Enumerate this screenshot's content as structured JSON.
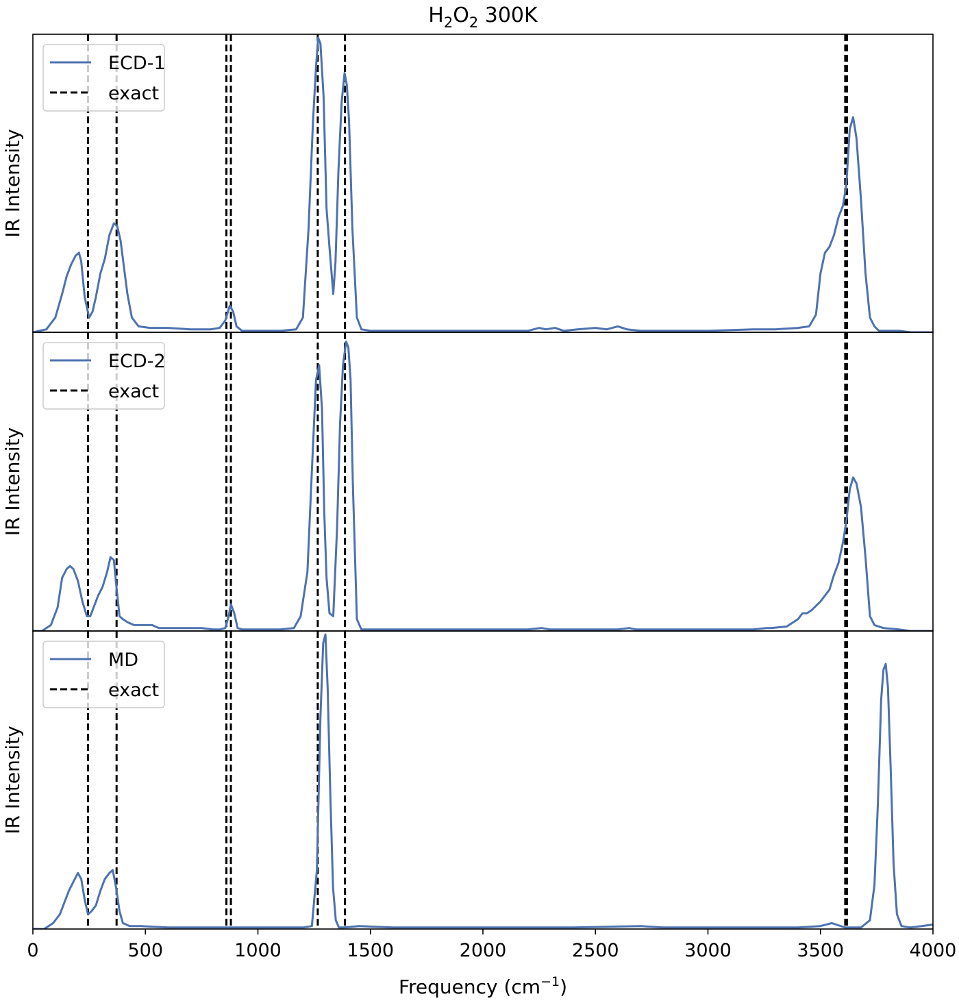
{
  "figure": {
    "title_main": "H",
    "title_sub1": "2",
    "title_mid": "O",
    "title_sub2": "2",
    "title_rest": " 300K",
    "xlabel_main": "Frequency (cm",
    "xlabel_sup": "−1",
    "xlabel_end": ")"
  },
  "chart_data": [
    {
      "type": "line",
      "ylabel": "IR Intensity",
      "xlim": [
        0,
        4000
      ],
      "ylim": [
        0,
        1.0
      ],
      "legend": "top-left",
      "series": [
        {
          "name": "ECD-1",
          "color": "#4c72b0",
          "x": [
            0,
            60,
            100,
            130,
            150,
            170,
            190,
            205,
            215,
            230,
            250,
            265,
            280,
            300,
            320,
            340,
            360,
            375,
            390,
            405,
            420,
            440,
            470,
            520,
            600,
            700,
            790,
            830,
            855,
            875,
            890,
            905,
            930,
            1000,
            1100,
            1170,
            1200,
            1225,
            1245,
            1258,
            1268,
            1278,
            1292,
            1305,
            1320,
            1335,
            1345,
            1358,
            1372,
            1385,
            1395,
            1405,
            1420,
            1440,
            1460,
            1500,
            1700,
            2000,
            2200,
            2250,
            2280,
            2320,
            2360,
            2420,
            2500,
            2550,
            2600,
            2640,
            2700,
            2800,
            3000,
            3200,
            3300,
            3400,
            3450,
            3480,
            3500,
            3520,
            3540,
            3560,
            3580,
            3600,
            3615,
            3630,
            3645,
            3660,
            3680,
            3700,
            3720,
            3740,
            3760,
            3800,
            3850,
            3900,
            4000
          ],
          "y": [
            0.0,
            0.01,
            0.05,
            0.13,
            0.19,
            0.23,
            0.26,
            0.27,
            0.24,
            0.12,
            0.05,
            0.07,
            0.12,
            0.2,
            0.25,
            0.33,
            0.37,
            0.36,
            0.31,
            0.22,
            0.13,
            0.05,
            0.02,
            0.015,
            0.015,
            0.01,
            0.01,
            0.015,
            0.04,
            0.09,
            0.07,
            0.02,
            0.005,
            0.005,
            0.005,
            0.01,
            0.05,
            0.35,
            0.72,
            0.9,
            1.0,
            0.98,
            0.8,
            0.42,
            0.27,
            0.13,
            0.24,
            0.55,
            0.78,
            0.88,
            0.84,
            0.72,
            0.35,
            0.05,
            0.01,
            0.005,
            0.005,
            0.005,
            0.005,
            0.015,
            0.01,
            0.015,
            0.005,
            0.01,
            0.015,
            0.01,
            0.02,
            0.01,
            0.005,
            0.005,
            0.005,
            0.01,
            0.01,
            0.015,
            0.02,
            0.06,
            0.2,
            0.27,
            0.29,
            0.33,
            0.39,
            0.43,
            0.5,
            0.69,
            0.73,
            0.66,
            0.45,
            0.2,
            0.05,
            0.02,
            0.005,
            0.005,
            0.005,
            0.0,
            0.0
          ]
        },
        {
          "name": "exact",
          "type": "vlines",
          "color": "#000000",
          "x": [
            245,
            372,
            860,
            880,
            1266,
            1387,
            3610,
            3618
          ]
        }
      ]
    },
    {
      "type": "line",
      "ylabel": "IR Intensity",
      "xlim": [
        0,
        4000
      ],
      "ylim": [
        0,
        1.0
      ],
      "legend": "top-left",
      "series": [
        {
          "name": "ECD-2",
          "color": "#4c72b0",
          "x": [
            0,
            40,
            80,
            110,
            130,
            150,
            165,
            180,
            200,
            220,
            240,
            255,
            270,
            290,
            310,
            330,
            345,
            360,
            370,
            385,
            400,
            420,
            450,
            500,
            530,
            560,
            650,
            750,
            800,
            830,
            855,
            870,
            880,
            895,
            910,
            930,
            1000,
            1100,
            1160,
            1190,
            1220,
            1242,
            1258,
            1272,
            1285,
            1295,
            1305,
            1318,
            1335,
            1352,
            1365,
            1378,
            1392,
            1402,
            1412,
            1422,
            1440,
            1460,
            1500,
            1700,
            2000,
            2200,
            2260,
            2300,
            2400,
            2500,
            2600,
            2650,
            2680,
            2720,
            2800,
            3000,
            3200,
            3260,
            3280,
            3350,
            3400,
            3420,
            3440,
            3460,
            3500,
            3540,
            3560,
            3580,
            3600,
            3615,
            3630,
            3645,
            3660,
            3680,
            3700,
            3720,
            3740,
            3780,
            3850,
            3900,
            3960,
            4000
          ],
          "y": [
            0.0,
            0.0,
            0.02,
            0.08,
            0.18,
            0.21,
            0.22,
            0.21,
            0.17,
            0.1,
            0.05,
            0.05,
            0.08,
            0.12,
            0.15,
            0.2,
            0.25,
            0.24,
            0.16,
            0.05,
            0.04,
            0.03,
            0.02,
            0.02,
            0.02,
            0.01,
            0.01,
            0.01,
            0.005,
            0.005,
            0.01,
            0.05,
            0.09,
            0.06,
            0.01,
            0.005,
            0.005,
            0.005,
            0.01,
            0.05,
            0.2,
            0.58,
            0.85,
            0.9,
            0.75,
            0.4,
            0.18,
            0.06,
            0.05,
            0.35,
            0.7,
            0.9,
            0.98,
            0.96,
            0.85,
            0.5,
            0.04,
            0.005,
            0.005,
            0.005,
            0.005,
            0.005,
            0.01,
            0.005,
            0.005,
            0.005,
            0.005,
            0.01,
            0.005,
            0.005,
            0.005,
            0.005,
            0.005,
            0.01,
            0.01,
            0.015,
            0.04,
            0.06,
            0.06,
            0.07,
            0.1,
            0.14,
            0.19,
            0.23,
            0.3,
            0.37,
            0.48,
            0.52,
            0.5,
            0.42,
            0.25,
            0.05,
            0.02,
            0.01,
            0.005,
            0.0,
            0.0,
            0.0
          ]
        },
        {
          "name": "exact",
          "type": "vlines",
          "color": "#000000",
          "x": [
            245,
            372,
            860,
            880,
            1266,
            1387,
            3610,
            3618
          ]
        }
      ]
    },
    {
      "type": "line",
      "ylabel": "IR Intensity",
      "xlim": [
        0,
        4000
      ],
      "ylim": [
        0,
        1.0
      ],
      "legend": "top-left",
      "series": [
        {
          "name": "MD",
          "color": "#4c72b0",
          "x": [
            0,
            50,
            90,
            120,
            140,
            160,
            180,
            200,
            215,
            230,
            245,
            260,
            280,
            300,
            320,
            340,
            355,
            370,
            385,
            400,
            430,
            480,
            600,
            800,
            1000,
            1200,
            1240,
            1262,
            1278,
            1290,
            1300,
            1310,
            1322,
            1334,
            1346,
            1360,
            1380,
            1450,
            1600,
            2000,
            2400,
            2700,
            2800,
            3000,
            3400,
            3500,
            3550,
            3570,
            3590,
            3610,
            3640,
            3680,
            3720,
            3740,
            3755,
            3770,
            3780,
            3790,
            3800,
            3812,
            3825,
            3840,
            3860,
            3900,
            3950,
            4000
          ],
          "y": [
            0.0,
            0.0,
            0.02,
            0.05,
            0.09,
            0.13,
            0.16,
            0.19,
            0.17,
            0.1,
            0.05,
            0.06,
            0.08,
            0.13,
            0.17,
            0.19,
            0.2,
            0.14,
            0.06,
            0.02,
            0.01,
            0.01,
            0.005,
            0.005,
            0.005,
            0.005,
            0.01,
            0.2,
            0.72,
            0.97,
            1.0,
            0.82,
            0.45,
            0.14,
            0.03,
            0.005,
            0.005,
            0.01,
            0.005,
            0.005,
            0.005,
            0.01,
            0.005,
            0.005,
            0.005,
            0.01,
            0.02,
            0.015,
            0.01,
            0.005,
            0.005,
            0.005,
            0.03,
            0.15,
            0.42,
            0.78,
            0.88,
            0.9,
            0.82,
            0.55,
            0.22,
            0.05,
            0.01,
            0.005,
            0.01,
            0.015
          ]
        },
        {
          "name": "exact",
          "type": "vlines",
          "color": "#000000",
          "x": [
            245,
            372,
            860,
            880,
            1266,
            1387,
            3610,
            3618
          ]
        }
      ]
    }
  ],
  "xticks": [
    0,
    500,
    1000,
    1500,
    2000,
    2500,
    3000,
    3500,
    4000
  ]
}
